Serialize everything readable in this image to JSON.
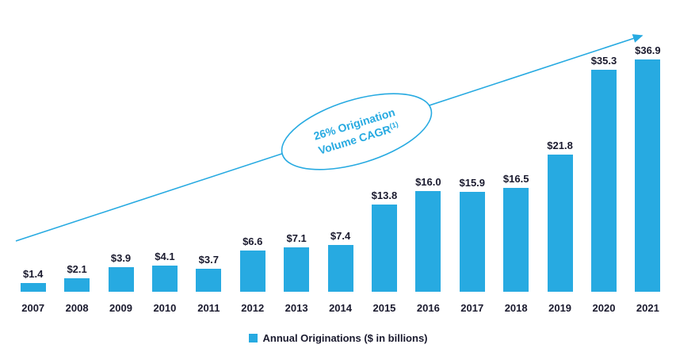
{
  "chart_data": {
    "type": "bar",
    "title": "",
    "xlabel": "",
    "ylabel": "",
    "categories": [
      "2007",
      "2008",
      "2009",
      "2010",
      "2011",
      "2012",
      "2013",
      "2014",
      "2015",
      "2016",
      "2017",
      "2018",
      "2019",
      "2020",
      "2021"
    ],
    "values": [
      1.4,
      2.1,
      3.9,
      4.1,
      3.7,
      6.6,
      7.1,
      7.4,
      13.8,
      16.0,
      15.9,
      16.5,
      21.8,
      35.3,
      36.9
    ],
    "value_labels": [
      "$1.4",
      "$2.1",
      "$3.9",
      "$4.1",
      "$3.7",
      "$6.6",
      "$7.1",
      "$7.4",
      "$13.8",
      "$16.0",
      "$15.9",
      "$16.5",
      "$21.8",
      "$35.3",
      "$36.9"
    ],
    "ylim": [
      0,
      36.9
    ],
    "grid": false,
    "legend_position": "bottom",
    "legend": "Annual Originations ($ in billions)",
    "annotation": {
      "line1": "26% Origination",
      "line2": "Volume CAGR",
      "superscript": "(1)"
    },
    "bar_color": "#27AAE1",
    "label_color": "#1A1A2E"
  }
}
